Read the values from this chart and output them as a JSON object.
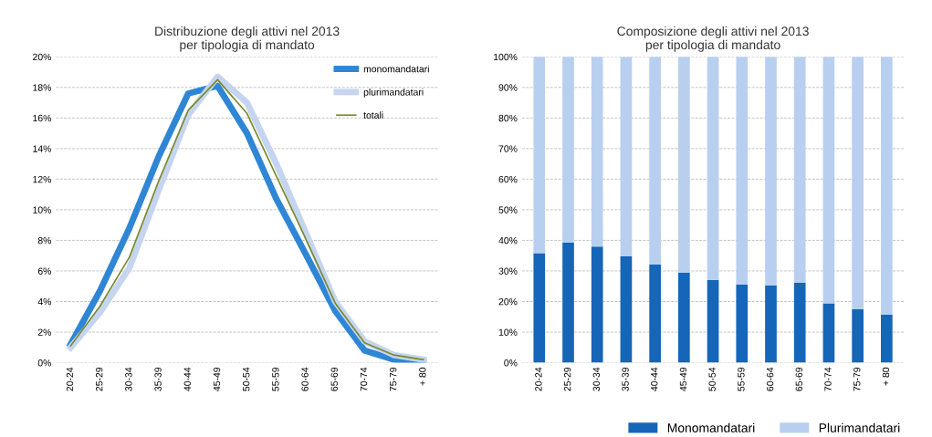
{
  "chart_data": [
    {
      "type": "line",
      "title": "Distribuzione degli attivi nel 2013\nper tipologia di mandato",
      "categories": [
        "20-24",
        "25-29",
        "30-34",
        "35-39",
        "40-44",
        "45-49",
        "50-54",
        "55-59",
        "60-64",
        "65-69",
        "70-74",
        "75-79",
        "+ 80"
      ],
      "series": [
        {
          "name": "monomandatari",
          "color": "#2f86d4",
          "values": [
            1.2,
            4.7,
            8.8,
            13.5,
            17.6,
            18.1,
            15.0,
            10.7,
            7.1,
            3.4,
            0.8,
            0.2,
            0.05
          ]
        },
        {
          "name": "plurimandatari",
          "color": "#c5d5f0",
          "values": [
            1.0,
            3.3,
            6.2,
            11.3,
            16.2,
            18.7,
            17.0,
            13.0,
            8.5,
            4.0,
            1.4,
            0.5,
            0.2
          ]
        },
        {
          "name": "totali",
          "color": "#7a8a2a",
          "values": [
            1.1,
            3.7,
            6.9,
            11.9,
            16.5,
            18.5,
            16.3,
            12.2,
            8.1,
            3.9,
            1.3,
            0.5,
            0.2
          ]
        }
      ],
      "ylim": [
        0,
        20
      ],
      "yticks": [
        {
          "value": 0,
          "label": "0%"
        },
        {
          "value": 2,
          "label": "2%"
        },
        {
          "value": 4,
          "label": "4%"
        },
        {
          "value": 6,
          "label": "6%"
        },
        {
          "value": 8,
          "label": "8%"
        },
        {
          "value": 10,
          "label": "10%"
        },
        {
          "value": 12,
          "label": "12%"
        },
        {
          "value": 14,
          "label": "14%"
        },
        {
          "value": 16,
          "label": "16%"
        },
        {
          "value": 18,
          "label": "18%"
        },
        {
          "value": 20,
          "label": "20%"
        }
      ],
      "grid": "y",
      "legend": "top right",
      "line_style": "solid",
      "marker": "none"
    },
    {
      "type": "bar",
      "stacked": true,
      "title": "Composizione degli attivi nel 2013\nper tipologia di mandato",
      "categories": [
        "20-24",
        "25-29",
        "30-34",
        "35-39",
        "40-44",
        "45-49",
        "50-54",
        "55-59",
        "60-64",
        "65-69",
        "70-74",
        "75-79",
        "+ 80"
      ],
      "series": [
        {
          "name": "Monomandatari",
          "color": "#1565b8",
          "values": [
            35.8,
            39.3,
            38.0,
            34.8,
            32.1,
            29.4,
            27.1,
            25.6,
            25.2,
            26.2,
            19.4,
            17.5,
            15.7
          ]
        },
        {
          "name": "Plurimandatari",
          "color": "#b8cff0",
          "values": [
            64.2,
            60.7,
            62.0,
            65.2,
            67.9,
            70.6,
            72.9,
            74.4,
            74.8,
            73.8,
            80.6,
            82.5,
            84.3
          ]
        }
      ],
      "ylim": [
        0,
        100
      ],
      "yticks": [
        {
          "value": 0,
          "label": "0%"
        },
        {
          "value": 10,
          "label": "10%"
        },
        {
          "value": 20,
          "label": "20%"
        },
        {
          "value": 30,
          "label": "30%"
        },
        {
          "value": 40,
          "label": "40%"
        },
        {
          "value": 50,
          "label": "50%"
        },
        {
          "value": 60,
          "label": "60%"
        },
        {
          "value": 70,
          "label": "70%"
        },
        {
          "value": 80,
          "label": "80%"
        },
        {
          "value": 90,
          "label": "90%"
        },
        {
          "value": 100,
          "label": "100%"
        }
      ],
      "grid": "y",
      "legend": "bottom right"
    }
  ]
}
